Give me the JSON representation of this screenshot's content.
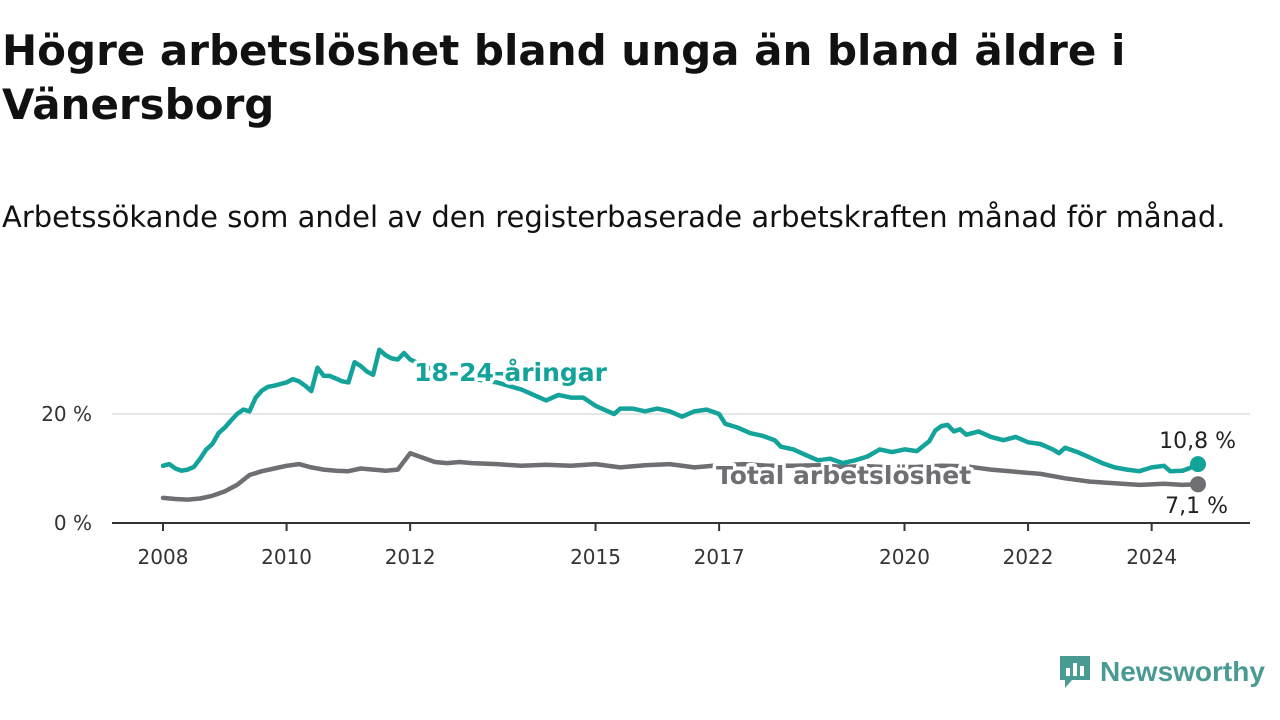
{
  "title": "Högre arbetslöshet bland unga än bland äldre i Vänersborg",
  "subtitle": "Arbetssökande som andel av den registerbaserade arbetskraften månad för månad.",
  "brand": {
    "name": "Newsworthy",
    "icon": "newsworthy-logo-icon",
    "color": "#4a9a94"
  },
  "colors": {
    "youth": "#13a39a",
    "total": "#6f6e73",
    "grid": "#dddddd",
    "axis": "#333333"
  },
  "chart_data": {
    "type": "line",
    "title": "Högre arbetslöshet bland unga än bland äldre i Vänersborg",
    "xlabel": "",
    "ylabel": "",
    "xlim": [
      2008.0,
      2024.75
    ],
    "ylim": [
      0,
      30
    ],
    "x_ticks": [
      {
        "value": 2008,
        "label": "2008"
      },
      {
        "value": 2010,
        "label": "2010"
      },
      {
        "value": 2012,
        "label": "2012"
      },
      {
        "value": 2015,
        "label": "2015"
      },
      {
        "value": 2017,
        "label": "2017"
      },
      {
        "value": 2020,
        "label": "2020"
      },
      {
        "value": 2022,
        "label": "2022"
      },
      {
        "value": 2024,
        "label": "2024"
      }
    ],
    "y_ticks": [
      {
        "value": 0,
        "label": "0 %"
      },
      {
        "value": 20,
        "label": "20 %"
      }
    ],
    "series": [
      {
        "name": "18-24-åringar",
        "color": "#13a39a",
        "end_label": "10,8 %",
        "points": [
          [
            2008.0,
            10.5
          ],
          [
            2008.1,
            10.8
          ],
          [
            2008.2,
            10.0
          ],
          [
            2008.3,
            9.6
          ],
          [
            2008.4,
            9.8
          ],
          [
            2008.5,
            10.3
          ],
          [
            2008.6,
            11.8
          ],
          [
            2008.7,
            13.5
          ],
          [
            2008.8,
            14.5
          ],
          [
            2008.9,
            16.5
          ],
          [
            2009.0,
            17.5
          ],
          [
            2009.1,
            18.8
          ],
          [
            2009.2,
            20.0
          ],
          [
            2009.3,
            20.8
          ],
          [
            2009.4,
            20.5
          ],
          [
            2009.5,
            23.0
          ],
          [
            2009.6,
            24.3
          ],
          [
            2009.7,
            25.0
          ],
          [
            2009.8,
            25.2
          ],
          [
            2009.9,
            25.5
          ],
          [
            2010.0,
            25.8
          ],
          [
            2010.1,
            26.4
          ],
          [
            2010.2,
            26.0
          ],
          [
            2010.3,
            25.2
          ],
          [
            2010.4,
            24.2
          ],
          [
            2010.5,
            28.5
          ],
          [
            2010.6,
            27.0
          ],
          [
            2010.7,
            27.0
          ],
          [
            2010.8,
            26.5
          ],
          [
            2010.9,
            26.0
          ],
          [
            2011.0,
            25.8
          ],
          [
            2011.1,
            29.5
          ],
          [
            2011.2,
            28.8
          ],
          [
            2011.3,
            27.8
          ],
          [
            2011.4,
            27.2
          ],
          [
            2011.5,
            31.8
          ],
          [
            2011.6,
            30.8
          ],
          [
            2011.7,
            30.2
          ],
          [
            2011.8,
            30.0
          ],
          [
            2011.9,
            31.2
          ],
          [
            2012.0,
            30.0
          ],
          [
            2012.3,
            28.5
          ],
          [
            2012.6,
            27.2
          ],
          [
            2013.0,
            26.5
          ],
          [
            2013.4,
            25.8
          ],
          [
            2013.8,
            24.5
          ],
          [
            2014.0,
            23.5
          ],
          [
            2014.2,
            22.5
          ],
          [
            2014.4,
            23.5
          ],
          [
            2014.6,
            23.0
          ],
          [
            2014.8,
            23.0
          ],
          [
            2015.0,
            21.5
          ],
          [
            2015.2,
            20.5
          ],
          [
            2015.3,
            20.0
          ],
          [
            2015.4,
            21.0
          ],
          [
            2015.6,
            21.0
          ],
          [
            2015.8,
            20.5
          ],
          [
            2016.0,
            21.0
          ],
          [
            2016.2,
            20.5
          ],
          [
            2016.4,
            19.5
          ],
          [
            2016.6,
            20.5
          ],
          [
            2016.8,
            20.8
          ],
          [
            2017.0,
            20.0
          ],
          [
            2017.1,
            18.2
          ],
          [
            2017.3,
            17.5
          ],
          [
            2017.5,
            16.5
          ],
          [
            2017.7,
            16.0
          ],
          [
            2017.9,
            15.2
          ],
          [
            2018.0,
            14.0
          ],
          [
            2018.2,
            13.5
          ],
          [
            2018.4,
            12.5
          ],
          [
            2018.6,
            11.5
          ],
          [
            2018.8,
            11.8
          ],
          [
            2019.0,
            11.0
          ],
          [
            2019.2,
            11.5
          ],
          [
            2019.4,
            12.2
          ],
          [
            2019.6,
            13.5
          ],
          [
            2019.8,
            13.0
          ],
          [
            2020.0,
            13.5
          ],
          [
            2020.2,
            13.2
          ],
          [
            2020.4,
            15.0
          ],
          [
            2020.5,
            17.0
          ],
          [
            2020.6,
            17.8
          ],
          [
            2020.7,
            18.0
          ],
          [
            2020.8,
            16.8
          ],
          [
            2020.9,
            17.2
          ],
          [
            2021.0,
            16.2
          ],
          [
            2021.2,
            16.8
          ],
          [
            2021.4,
            15.8
          ],
          [
            2021.6,
            15.2
          ],
          [
            2021.8,
            15.8
          ],
          [
            2022.0,
            14.8
          ],
          [
            2022.2,
            14.5
          ],
          [
            2022.4,
            13.5
          ],
          [
            2022.5,
            12.8
          ],
          [
            2022.6,
            13.8
          ],
          [
            2022.8,
            13.0
          ],
          [
            2023.0,
            12.0
          ],
          [
            2023.2,
            11.0
          ],
          [
            2023.4,
            10.2
          ],
          [
            2023.6,
            9.8
          ],
          [
            2023.8,
            9.5
          ],
          [
            2024.0,
            10.2
          ],
          [
            2024.2,
            10.5
          ],
          [
            2024.3,
            9.5
          ],
          [
            2024.5,
            9.6
          ],
          [
            2024.6,
            10.0
          ],
          [
            2024.75,
            10.8
          ]
        ]
      },
      {
        "name": "Total arbetslöshet",
        "color": "#6f6e73",
        "end_label": "7,1 %",
        "points": [
          [
            2008.0,
            4.6
          ],
          [
            2008.2,
            4.4
          ],
          [
            2008.4,
            4.3
          ],
          [
            2008.6,
            4.5
          ],
          [
            2008.8,
            5.0
          ],
          [
            2009.0,
            5.8
          ],
          [
            2009.2,
            7.0
          ],
          [
            2009.4,
            8.8
          ],
          [
            2009.6,
            9.5
          ],
          [
            2009.8,
            10.0
          ],
          [
            2010.0,
            10.5
          ],
          [
            2010.2,
            10.8
          ],
          [
            2010.4,
            10.2
          ],
          [
            2010.6,
            9.8
          ],
          [
            2010.8,
            9.6
          ],
          [
            2011.0,
            9.5
          ],
          [
            2011.2,
            10.0
          ],
          [
            2011.4,
            9.8
          ],
          [
            2011.6,
            9.6
          ],
          [
            2011.8,
            9.8
          ],
          [
            2012.0,
            12.8
          ],
          [
            2012.2,
            12.0
          ],
          [
            2012.4,
            11.2
          ],
          [
            2012.6,
            11.0
          ],
          [
            2012.8,
            11.2
          ],
          [
            2013.0,
            11.0
          ],
          [
            2013.4,
            10.8
          ],
          [
            2013.8,
            10.5
          ],
          [
            2014.2,
            10.7
          ],
          [
            2014.6,
            10.5
          ],
          [
            2015.0,
            10.8
          ],
          [
            2015.4,
            10.2
          ],
          [
            2015.8,
            10.6
          ],
          [
            2016.2,
            10.8
          ],
          [
            2016.6,
            10.2
          ],
          [
            2017.0,
            10.6
          ],
          [
            2017.4,
            10.8
          ],
          [
            2017.8,
            10.5
          ],
          [
            2018.2,
            10.5
          ],
          [
            2018.6,
            10.6
          ],
          [
            2019.0,
            10.3
          ],
          [
            2019.4,
            10.4
          ],
          [
            2019.8,
            10.2
          ],
          [
            2020.2,
            10.3
          ],
          [
            2020.6,
            10.5
          ],
          [
            2021.0,
            10.4
          ],
          [
            2021.4,
            9.8
          ],
          [
            2021.8,
            9.4
          ],
          [
            2022.2,
            9.0
          ],
          [
            2022.6,
            8.2
          ],
          [
            2023.0,
            7.6
          ],
          [
            2023.4,
            7.3
          ],
          [
            2023.8,
            7.0
          ],
          [
            2024.2,
            7.2
          ],
          [
            2024.5,
            7.0
          ],
          [
            2024.75,
            7.1
          ]
        ]
      }
    ]
  }
}
